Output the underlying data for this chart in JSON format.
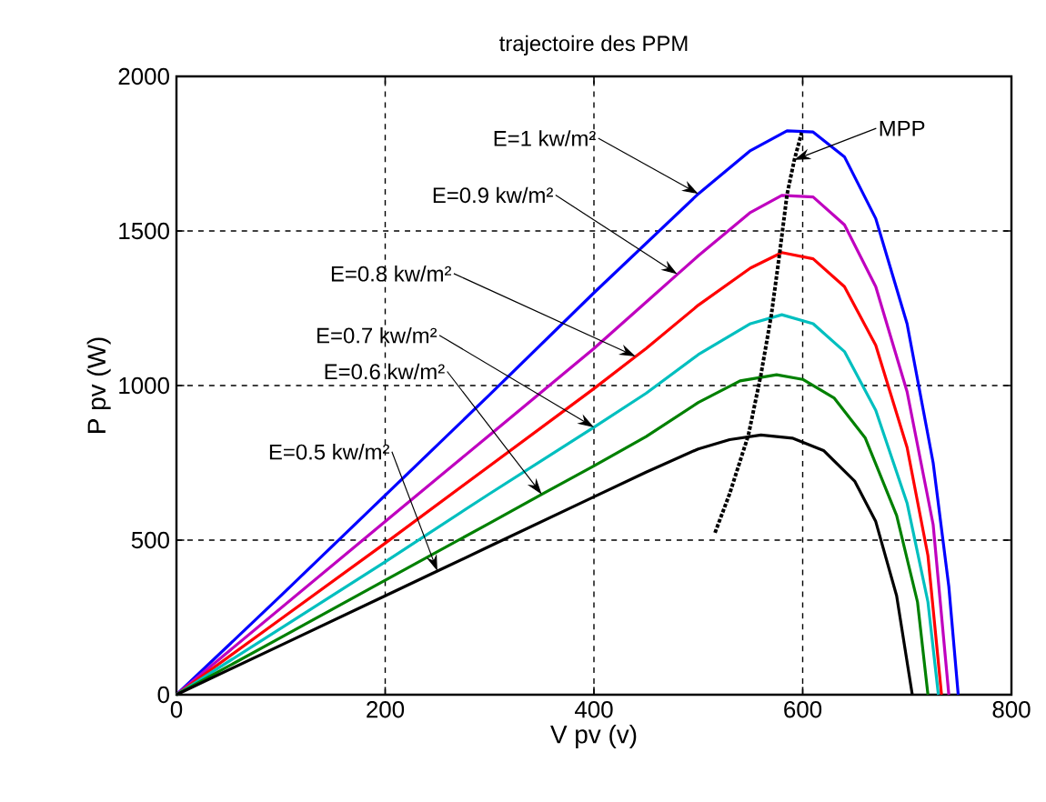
{
  "chart_data": {
    "type": "line",
    "title": "trajectoire des PPM",
    "xlabel": "V pv (v)",
    "ylabel": "P pv (W)",
    "xlim": [
      0,
      800
    ],
    "ylim": [
      0,
      2000
    ],
    "xticks": [
      0,
      200,
      400,
      600,
      800
    ],
    "yticks": [
      0,
      500,
      1000,
      1500,
      2000
    ],
    "grid": true,
    "line_style": "solid",
    "series": [
      {
        "color": "#0000ff",
        "x": [
          0,
          100,
          200,
          300,
          400,
          450,
          500,
          550,
          585,
          610,
          640,
          670,
          700,
          725,
          740,
          749
        ],
        "values": [
          0,
          320,
          645,
          970,
          1300,
          1460,
          1620,
          1760,
          1824,
          1820,
          1740,
          1540,
          1200,
          750,
          350,
          0
        ]
      },
      {
        "color": "#bf00bf",
        "x": [
          0,
          100,
          200,
          300,
          400,
          450,
          480,
          500,
          550,
          580,
          610,
          640,
          670,
          700,
          725,
          740
        ],
        "values": [
          0,
          280,
          560,
          840,
          1120,
          1270,
          1360,
          1420,
          1560,
          1615,
          1610,
          1520,
          1320,
          980,
          550,
          0
        ]
      },
      {
        "color": "#ff0000",
        "x": [
          0,
          100,
          200,
          300,
          400,
          440,
          450,
          500,
          550,
          580,
          610,
          640,
          670,
          700,
          720,
          733
        ],
        "values": [
          0,
          245,
          490,
          740,
          990,
          1094,
          1120,
          1260,
          1380,
          1430,
          1410,
          1320,
          1130,
          800,
          450,
          0
        ]
      },
      {
        "color": "#00bfbf",
        "x": [
          0,
          100,
          200,
          300,
          400,
          450,
          500,
          550,
          580,
          610,
          640,
          670,
          700,
          720,
          730
        ],
        "values": [
          0,
          215,
          430,
          650,
          865,
          975,
          1100,
          1200,
          1229,
          1200,
          1110,
          920,
          620,
          300,
          0
        ]
      },
      {
        "color": "#008000",
        "x": [
          0,
          100,
          200,
          300,
          350,
          400,
          450,
          500,
          540,
          575,
          600,
          630,
          660,
          690,
          710,
          720
        ],
        "values": [
          0,
          185,
          370,
          555,
          648,
          740,
          835,
          945,
          1015,
          1035,
          1020,
          960,
          830,
          580,
          300,
          0
        ]
      },
      {
        "color": "#000000",
        "x": [
          0,
          100,
          200,
          250,
          300,
          400,
          450,
          500,
          530,
          560,
          590,
          620,
          650,
          670,
          690,
          705
        ],
        "values": [
          0,
          160,
          320,
          400,
          480,
          640,
          720,
          795,
          825,
          840,
          830,
          790,
          690,
          560,
          320,
          0
        ]
      },
      {
        "color": "#000000",
        "line_style": "dotted",
        "x": [
          516,
          530,
          548,
          560,
          570,
          578,
          585,
          592,
          599
        ],
        "values": [
          524,
          650,
          840,
          1035,
          1229,
          1430,
          1618,
          1730,
          1818
        ]
      }
    ],
    "annotations": [
      {
        "text": "E=1 kw/m²",
        "x": 500,
        "y": 1620
      },
      {
        "text": "E=0.9 kw/m²",
        "x": 480,
        "y": 1360
      },
      {
        "text": "E=0.8 kw/m²",
        "x": 440,
        "y": 1094
      },
      {
        "text": "E=0.7 kw/m²",
        "x": 400,
        "y": 865
      },
      {
        "text": "E=0.6 kw/m²",
        "x": 350,
        "y": 648
      },
      {
        "text": "E=0.5 kw/m²",
        "x": 250,
        "y": 400
      },
      {
        "text": "MPP",
        "x": 592,
        "y": 1730
      }
    ]
  }
}
